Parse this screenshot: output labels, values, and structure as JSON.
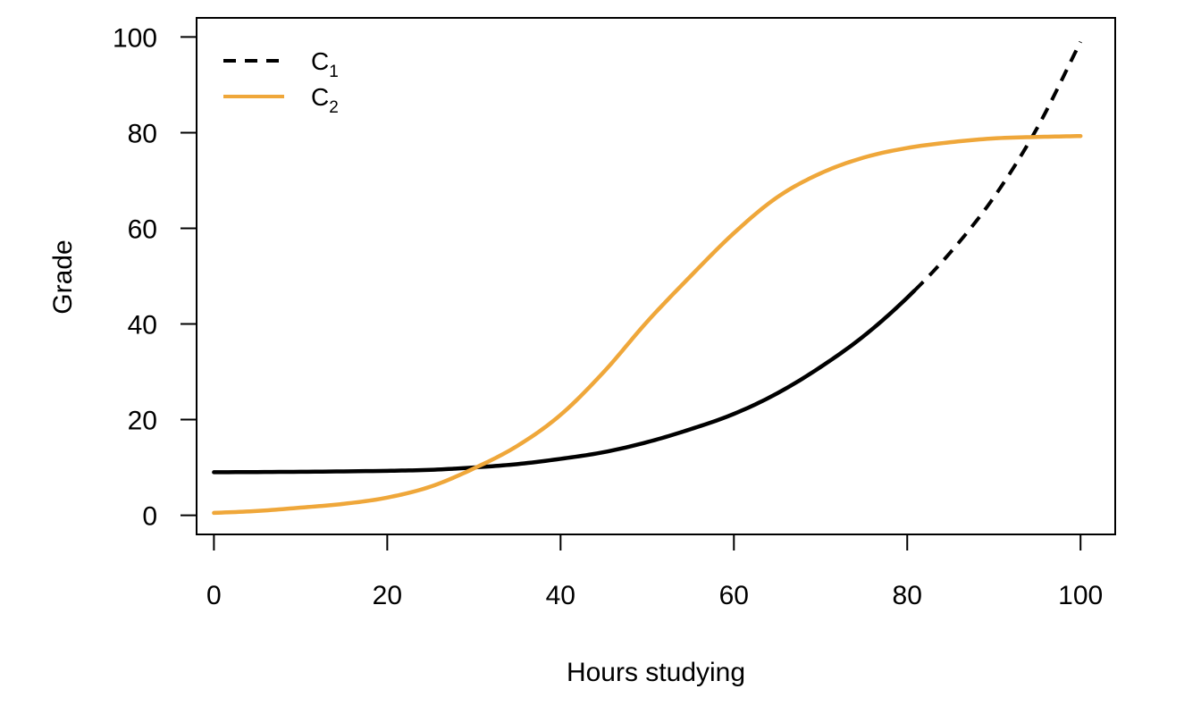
{
  "chart_data": {
    "type": "line",
    "title": "",
    "xlabel": "Hours studying",
    "ylabel": "Grade",
    "xlim": [
      -2,
      104
    ],
    "ylim": [
      -4,
      104
    ],
    "x_ticks": [
      0,
      20,
      40,
      60,
      80,
      100
    ],
    "y_ticks": [
      0,
      20,
      40,
      60,
      80,
      100
    ],
    "grid": false,
    "legend_position": "top-left",
    "series": [
      {
        "name": "C",
        "name_subscript": "1",
        "color": "#000000",
        "style": "solid-then-dashed",
        "dash_from_x": 81,
        "x": [
          0,
          10,
          20,
          25,
          30,
          35,
          40,
          45,
          50,
          55,
          60,
          65,
          70,
          75,
          80,
          85,
          90,
          95,
          100
        ],
        "y": [
          9,
          9.1,
          9.3,
          9.5,
          10.0,
          10.7,
          11.8,
          13.2,
          15.3,
          18.0,
          21.2,
          25.5,
          31.0,
          37.5,
          45.5,
          55.0,
          66.5,
          81.0,
          99.0
        ]
      },
      {
        "name": "C",
        "name_subscript": "2",
        "color": "#EFA73A",
        "style": "solid",
        "x": [
          0,
          5,
          10,
          15,
          20,
          25,
          30,
          35,
          40,
          45,
          50,
          55,
          60,
          65,
          70,
          75,
          80,
          85,
          90,
          95,
          100
        ],
        "y": [
          0.5,
          0.9,
          1.6,
          2.4,
          3.7,
          6.0,
          9.8,
          14.5,
          21.0,
          30.0,
          40.5,
          50.0,
          59.0,
          66.5,
          71.5,
          74.8,
          76.8,
          78.0,
          78.8,
          79.1,
          79.3
        ]
      }
    ]
  }
}
